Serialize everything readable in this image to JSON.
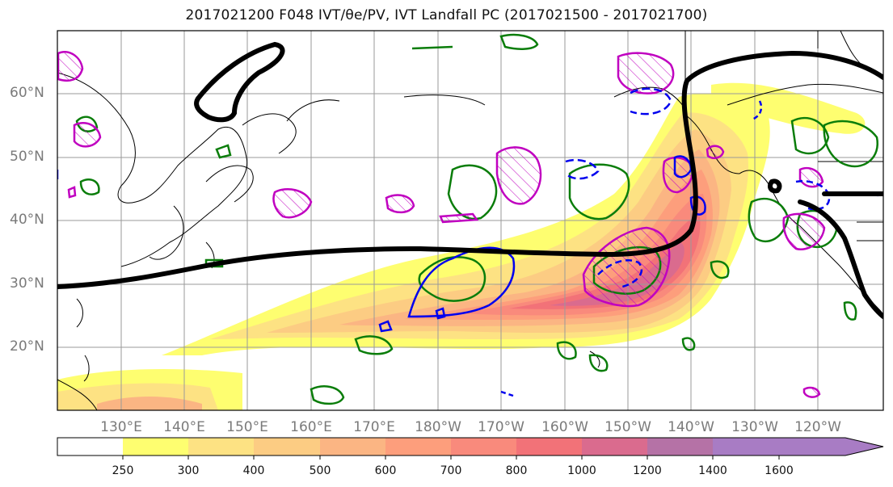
{
  "title": "2017021200 F048 IVT/θe/PV, IVT Landfall PC (2017021500 - 2017021700)",
  "lat_labels": [
    "60°N",
    "50°N",
    "40°N",
    "30°N",
    "20°N"
  ],
  "lon_labels": [
    "130°E",
    "140°E",
    "150°E",
    "160°E",
    "170°E",
    "180°W",
    "170°W",
    "160°W",
    "150°W",
    "140°W",
    "130°W",
    "120°W"
  ],
  "colorbar": {
    "ticks": [
      "250",
      "300",
      "400",
      "500",
      "600",
      "700",
      "800",
      "1000",
      "1200",
      "1400",
      "1600"
    ],
    "colors": [
      "#ffffff",
      "#fefe70",
      "#fde283",
      "#fccc83",
      "#fbb583",
      "#fd9e7c",
      "#f98a7c",
      "#f27278",
      "#da6b8e",
      "#b572a6",
      "#a87cc4"
    ]
  },
  "legend_colors": {
    "ivt_landfall_pc": "#000000",
    "theta_e": "#0a7d0a",
    "pv_magenta": "#c000c0",
    "pv_blue": "#0000ee"
  }
}
